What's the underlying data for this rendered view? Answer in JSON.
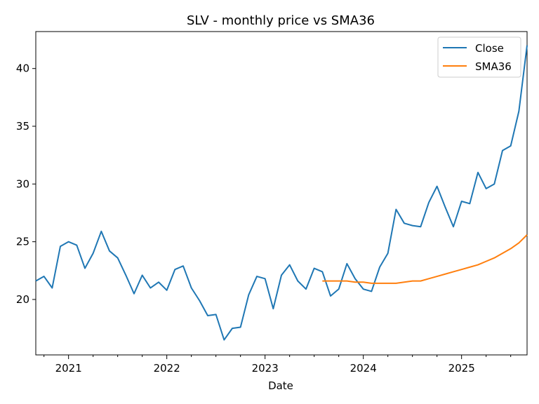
{
  "chart_data": {
    "type": "line",
    "title": "SLV - monthly price vs SMA36",
    "xlabel": "Date",
    "ylabel": "",
    "x_range": [
      "2020-09",
      "2025-09"
    ],
    "ylim": [
      15.2,
      43.2
    ],
    "x_ticks": [
      "2021",
      "2022",
      "2023",
      "2024",
      "2025"
    ],
    "y_ticks": [
      20,
      25,
      30,
      35,
      40
    ],
    "grid": false,
    "legend_position": "top-right",
    "series": [
      {
        "name": "Close",
        "color": "#1f77b4",
        "points": [
          [
            "2020-09",
            21.6
          ],
          [
            "2020-10",
            22.0
          ],
          [
            "2020-11",
            21.0
          ],
          [
            "2020-12",
            24.6
          ],
          [
            "2021-01",
            25.0
          ],
          [
            "2021-02",
            24.7
          ],
          [
            "2021-03",
            22.7
          ],
          [
            "2021-04",
            24.0
          ],
          [
            "2021-05",
            25.9
          ],
          [
            "2021-06",
            24.2
          ],
          [
            "2021-07",
            23.6
          ],
          [
            "2021-08",
            22.1
          ],
          [
            "2021-09",
            20.5
          ],
          [
            "2021-10",
            22.1
          ],
          [
            "2021-11",
            21.0
          ],
          [
            "2021-12",
            21.5
          ],
          [
            "2022-01",
            20.8
          ],
          [
            "2022-02",
            22.6
          ],
          [
            "2022-03",
            22.9
          ],
          [
            "2022-04",
            21.0
          ],
          [
            "2022-05",
            19.9
          ],
          [
            "2022-06",
            18.6
          ],
          [
            "2022-07",
            18.7
          ],
          [
            "2022-08",
            16.5
          ],
          [
            "2022-09",
            17.5
          ],
          [
            "2022-10",
            17.6
          ],
          [
            "2022-11",
            20.4
          ],
          [
            "2022-12",
            22.0
          ],
          [
            "2023-01",
            21.8
          ],
          [
            "2023-02",
            19.2
          ],
          [
            "2023-03",
            22.1
          ],
          [
            "2023-04",
            23.0
          ],
          [
            "2023-05",
            21.6
          ],
          [
            "2023-06",
            20.9
          ],
          [
            "2023-07",
            22.7
          ],
          [
            "2023-08",
            22.4
          ],
          [
            "2023-09",
            20.3
          ],
          [
            "2023-10",
            20.9
          ],
          [
            "2023-11",
            23.1
          ],
          [
            "2023-12",
            21.8
          ],
          [
            "2024-01",
            20.9
          ],
          [
            "2024-02",
            20.7
          ],
          [
            "2024-03",
            22.8
          ],
          [
            "2024-04",
            24.0
          ],
          [
            "2024-05",
            27.8
          ],
          [
            "2024-06",
            26.6
          ],
          [
            "2024-07",
            26.4
          ],
          [
            "2024-08",
            26.3
          ],
          [
            "2024-09",
            28.4
          ],
          [
            "2024-10",
            29.8
          ],
          [
            "2024-11",
            28.0
          ],
          [
            "2024-12",
            26.3
          ],
          [
            "2025-01",
            28.5
          ],
          [
            "2025-02",
            28.3
          ],
          [
            "2025-03",
            31.0
          ],
          [
            "2025-04",
            29.6
          ],
          [
            "2025-05",
            30.0
          ],
          [
            "2025-06",
            32.9
          ],
          [
            "2025-07",
            33.3
          ],
          [
            "2025-08",
            36.3
          ],
          [
            "2025-09",
            42.0
          ]
        ]
      },
      {
        "name": "SMA36",
        "color": "#ff7f0e",
        "points": [
          [
            "2023-08",
            21.6
          ],
          [
            "2023-09",
            21.6
          ],
          [
            "2023-10",
            21.6
          ],
          [
            "2023-11",
            21.6
          ],
          [
            "2023-12",
            21.5
          ],
          [
            "2024-01",
            21.5
          ],
          [
            "2024-02",
            21.4
          ],
          [
            "2024-03",
            21.4
          ],
          [
            "2024-04",
            21.4
          ],
          [
            "2024-05",
            21.4
          ],
          [
            "2024-06",
            21.5
          ],
          [
            "2024-07",
            21.6
          ],
          [
            "2024-08",
            21.6
          ],
          [
            "2024-09",
            21.8
          ],
          [
            "2024-10",
            22.0
          ],
          [
            "2024-11",
            22.2
          ],
          [
            "2024-12",
            22.4
          ],
          [
            "2025-01",
            22.6
          ],
          [
            "2025-02",
            22.8
          ],
          [
            "2025-03",
            23.0
          ],
          [
            "2025-04",
            23.3
          ],
          [
            "2025-05",
            23.6
          ],
          [
            "2025-06",
            24.0
          ],
          [
            "2025-07",
            24.4
          ],
          [
            "2025-08",
            24.9
          ],
          [
            "2025-09",
            25.6
          ]
        ]
      }
    ]
  }
}
